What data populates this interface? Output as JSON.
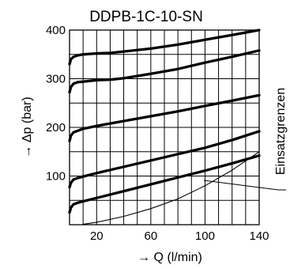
{
  "chart_data": {
    "type": "line",
    "title": "DDPB-1C-10-SN",
    "xlabel": "→ Q (l/min)",
    "ylabel": "→ Δp (bar)",
    "annotation": "Einsatzgrenzen",
    "xlim": [
      0,
      140
    ],
    "ylim": [
      0,
      400
    ],
    "x_ticks": [
      {
        "value": 20,
        "label": "20"
      },
      {
        "value": 60,
        "label": "60"
      },
      {
        "value": 100,
        "label": "100"
      },
      {
        "value": 140,
        "label": "140"
      }
    ],
    "y_ticks": [
      {
        "value": 100,
        "label": "100"
      },
      {
        "value": 200,
        "label": "200"
      },
      {
        "value": 300,
        "label": "300"
      },
      {
        "value": 400,
        "label": "400"
      }
    ],
    "grid": true,
    "series": [
      {
        "name": "",
        "style": "thick",
        "x": [
          0,
          1,
          3,
          6,
          10,
          20,
          30,
          40,
          60,
          80,
          100,
          120,
          140
        ],
        "y": [
          330,
          340,
          345,
          348,
          350,
          352,
          353,
          356,
          362,
          370,
          380,
          390,
          400
        ]
      },
      {
        "name": "",
        "style": "thick",
        "x": [
          0,
          1,
          3,
          6,
          10,
          20,
          30,
          40,
          60,
          80,
          100,
          120,
          140
        ],
        "y": [
          272,
          283,
          290,
          293,
          294,
          297,
          298,
          301,
          310,
          320,
          333,
          345,
          358
        ]
      },
      {
        "name": "",
        "style": "thick",
        "x": [
          0,
          1,
          3,
          6,
          10,
          20,
          40,
          60,
          80,
          100,
          120,
          140
        ],
        "y": [
          172,
          183,
          190,
          193,
          197,
          203,
          213,
          223,
          233,
          244,
          255,
          266
        ]
      },
      {
        "name": "",
        "style": "thick",
        "x": [
          0,
          1,
          3,
          6,
          10,
          20,
          40,
          60,
          80,
          100,
          120,
          140
        ],
        "y": [
          77,
          86,
          93,
          96,
          99,
          106,
          119,
          132,
          145,
          158,
          174,
          192
        ]
      },
      {
        "name": "",
        "style": "thick",
        "x": [
          0,
          1,
          3,
          6,
          10,
          20,
          40,
          60,
          80,
          100,
          120,
          140
        ],
        "y": [
          25,
          35,
          42,
          45,
          48,
          55,
          69,
          83,
          97,
          111,
          126,
          142
        ]
      },
      {
        "name": "",
        "style": "thin",
        "x": [
          10,
          20,
          40,
          60,
          80,
          100,
          120,
          140
        ],
        "y": [
          1,
          5,
          17,
          33,
          53,
          80,
          112,
          150
        ]
      }
    ]
  }
}
